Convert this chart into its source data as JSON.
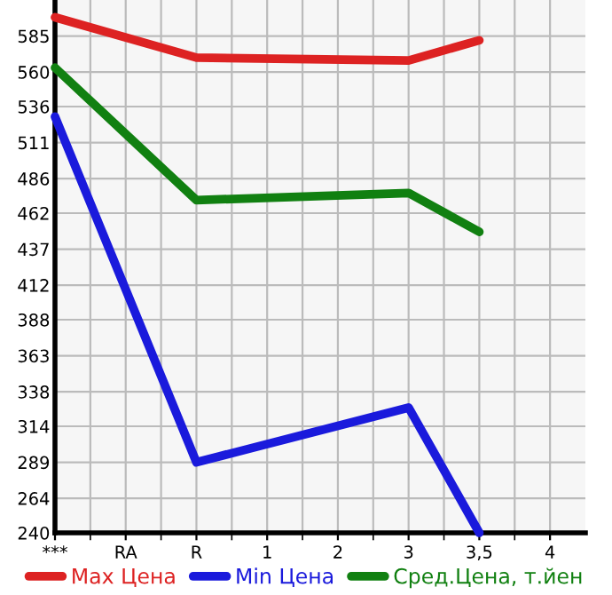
{
  "chart_data": {
    "type": "line",
    "categories": [
      "***",
      "RA",
      "R",
      "1",
      "2",
      "3",
      "3,5",
      "4"
    ],
    "series": [
      {
        "name": "Max Цена",
        "color": "#dd2222",
        "values": [
          598,
          null,
          570,
          null,
          null,
          568,
          582,
          null
        ]
      },
      {
        "name": "Min Цена",
        "color": "#1a1adc",
        "values": [
          529,
          null,
          289,
          null,
          null,
          327,
          240,
          null
        ]
      },
      {
        "name": "Сред.Цена, т.йен",
        "color": "#118011",
        "values": [
          563,
          null,
          471,
          null,
          null,
          476,
          449,
          null
        ]
      }
    ],
    "ylim": [
      240,
      610
    ],
    "yticks": [
      240,
      264,
      289,
      314,
      338,
      363,
      388,
      412,
      437,
      462,
      486,
      511,
      536,
      560,
      585
    ],
    "grid": true,
    "legend": "bottom",
    "marker": "none",
    "line_style": "solid"
  }
}
